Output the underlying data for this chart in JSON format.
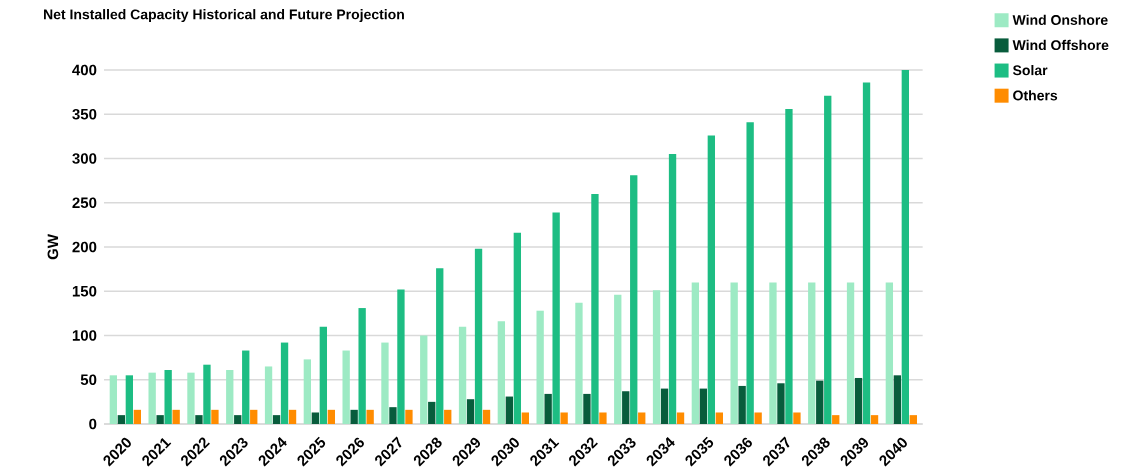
{
  "chart_data": {
    "type": "bar",
    "title": "Net Installed Capacity Historical and Future Projection",
    "ylabel": "GW",
    "categories": [
      "2020",
      "2021",
      "2022",
      "2023",
      "2024",
      "2025",
      "2026",
      "2027",
      "2028",
      "2029",
      "2030",
      "2031",
      "2032",
      "2033",
      "2034",
      "2035",
      "2036",
      "2037",
      "2038",
      "2039",
      "2040"
    ],
    "series": [
      {
        "name": "Wind Onshore",
        "color": "#9deac4",
        "values": [
          55,
          58,
          58,
          61,
          65,
          73,
          83,
          92,
          100,
          110,
          116,
          128,
          137,
          146,
          151,
          160,
          160,
          160,
          160,
          160,
          160
        ]
      },
      {
        "name": "Wind Offshore",
        "color": "#085c3c",
        "values": [
          10,
          10,
          10,
          10,
          10,
          13,
          16,
          19,
          25,
          28,
          31,
          34,
          34,
          37,
          40,
          40,
          43,
          46,
          49,
          52,
          55
        ]
      },
      {
        "name": "Solar",
        "color": "#1dbd83",
        "values": [
          55,
          61,
          67,
          83,
          92,
          110,
          131,
          152,
          176,
          198,
          216,
          239,
          260,
          281,
          305,
          326,
          341,
          356,
          371,
          386,
          400
        ]
      },
      {
        "name": "Others",
        "color": "#ff8c00",
        "values": [
          16,
          16,
          16,
          16,
          16,
          16,
          16,
          16,
          16,
          16,
          13,
          13,
          13,
          13,
          13,
          13,
          13,
          13,
          10,
          10,
          10
        ]
      }
    ],
    "ylim": [
      0,
      400
    ],
    "yticks": [
      0,
      50,
      100,
      150,
      200,
      250,
      300,
      350,
      400
    ],
    "grid": "y",
    "legend": "right"
  }
}
